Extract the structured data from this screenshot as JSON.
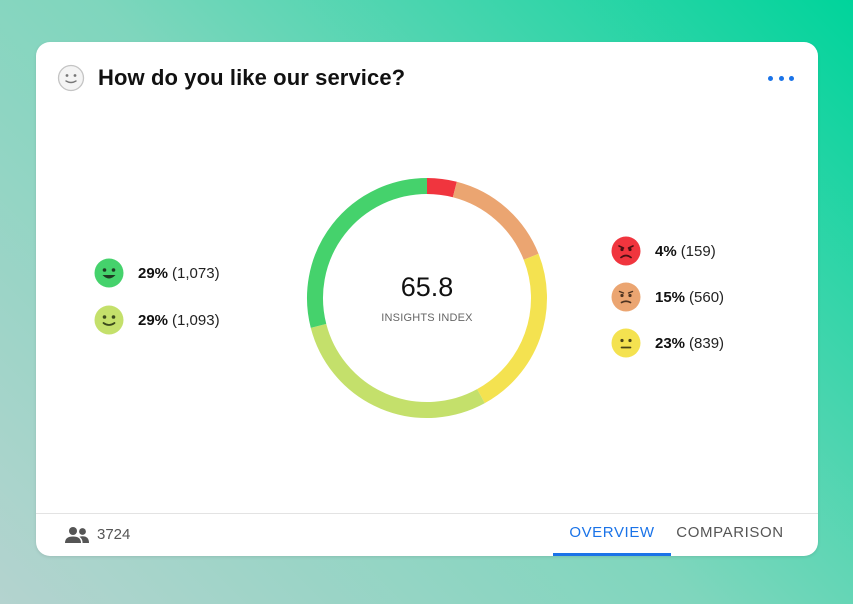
{
  "widget": {
    "title": "How do you like our service?",
    "header_icon": "neutral-face-icon",
    "menu_icon": "more-horizontal-icon"
  },
  "chart_data": {
    "type": "pie",
    "variant": "donut",
    "center_value": "65.8",
    "center_label": "INSIGHTS INDEX",
    "slices": [
      {
        "face": "angry",
        "percent": 4,
        "percent_label": "4%",
        "count": 159,
        "count_label": "(159)",
        "color": "#f0353e"
      },
      {
        "face": "frown",
        "percent": 15,
        "percent_label": "15%",
        "count": 560,
        "count_label": "(560)",
        "color": "#eba571"
      },
      {
        "face": "neutral",
        "percent": 23,
        "percent_label": "23%",
        "count": 839,
        "count_label": "(839)",
        "color": "#f4e250"
      },
      {
        "face": "smile",
        "percent": 29,
        "percent_label": "29%",
        "count": 1093,
        "count_label": "(1,093)",
        "color": "#c4e06b"
      },
      {
        "face": "big-smile",
        "percent": 29,
        "percent_label": "29%",
        "count": 1073,
        "count_label": "(1,073)",
        "color": "#45d26c"
      }
    ]
  },
  "footer": {
    "respondents_icon": "people-icon",
    "respondents": "3724",
    "tabs": [
      {
        "label": "OVERVIEW",
        "active": true
      },
      {
        "label": "COMPARISON",
        "active": false
      }
    ]
  },
  "colors": {
    "accent": "#1a73e8",
    "background_gradient": [
      "#b4d3cf",
      "#00d49b"
    ]
  }
}
